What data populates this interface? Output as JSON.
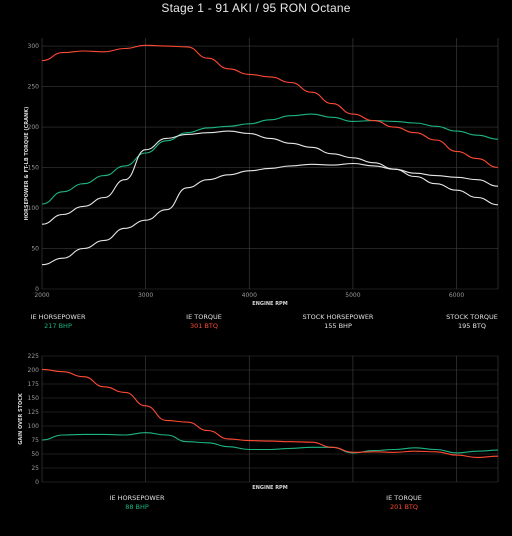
{
  "title": "Stage 1 - 91 AKI / 95 RON Octane",
  "colors": {
    "green": "#1db584",
    "red": "#ff4a33",
    "white": "#e6e6e6",
    "grid": "#3a3a3a",
    "background": "#000000"
  },
  "chart_data": [
    {
      "type": "line",
      "ylabel": "HORSEPOWER & FT-LB TORQUE (CRANK)",
      "xlabel": "ENGINE RPM",
      "xlim": [
        2000,
        6400
      ],
      "ylim": [
        0,
        310
      ],
      "xticks": [
        "2000",
        "3000",
        "4000",
        "5000",
        "6000"
      ],
      "yticks": [
        "0",
        "50",
        "100",
        "150",
        "200",
        "250",
        "300"
      ],
      "grid": true,
      "series": [
        {
          "name": "IE HORSEPOWER",
          "color": "green",
          "x": [
            2000,
            2200,
            2400,
            2600,
            2800,
            3000,
            3200,
            3400,
            3600,
            3800,
            4000,
            4200,
            4400,
            4600,
            4800,
            5000,
            5200,
            5400,
            5600,
            5800,
            6000,
            6200,
            6400
          ],
          "y": [
            105,
            120,
            130,
            140,
            152,
            168,
            183,
            193,
            199,
            201,
            204,
            209,
            214,
            216,
            212,
            207,
            208,
            207,
            205,
            201,
            195,
            190,
            185
          ]
        },
        {
          "name": "IE TORQUE",
          "color": "red",
          "x": [
            2000,
            2200,
            2400,
            2600,
            2800,
            3000,
            3200,
            3400,
            3600,
            3800,
            4000,
            4200,
            4400,
            4600,
            4800,
            5000,
            5200,
            5400,
            5600,
            5800,
            6000,
            6200,
            6400
          ],
          "y": [
            282,
            292,
            294,
            293,
            297,
            301,
            300,
            299,
            285,
            272,
            265,
            262,
            255,
            243,
            229,
            216,
            208,
            200,
            193,
            184,
            170,
            161,
            150
          ]
        },
        {
          "name": "STOCK HORSEPOWER",
          "color": "white",
          "x": [
            2000,
            2200,
            2400,
            2600,
            2800,
            3000,
            3200,
            3400,
            3600,
            3800,
            4000,
            4200,
            4400,
            4600,
            4800,
            5000,
            5200,
            5400,
            5600,
            5800,
            6000,
            6200,
            6400
          ],
          "y": [
            30,
            38,
            50,
            60,
            75,
            85,
            98,
            125,
            135,
            141,
            146,
            149,
            152,
            154,
            153,
            155,
            152,
            148,
            143,
            140,
            138,
            135,
            127
          ]
        },
        {
          "name": "STOCK TORQUE",
          "color": "white",
          "x": [
            2000,
            2200,
            2400,
            2600,
            2800,
            3000,
            3200,
            3400,
            3600,
            3800,
            4000,
            4200,
            4400,
            4600,
            4800,
            5000,
            5200,
            5400,
            5600,
            5800,
            6000,
            6200,
            6400
          ],
          "y": [
            80,
            92,
            102,
            113,
            135,
            172,
            186,
            191,
            193,
            195,
            192,
            186,
            180,
            175,
            167,
            162,
            156,
            148,
            139,
            130,
            122,
            113,
            104
          ]
        }
      ]
    },
    {
      "type": "line",
      "ylabel": "GAIN OVER STOCK",
      "xlabel": "ENGINE RPM",
      "xlim": [
        2000,
        6400
      ],
      "ylim": [
        0,
        225
      ],
      "yticks": [
        "0",
        "25",
        "50",
        "75",
        "100",
        "125",
        "150",
        "175",
        "200",
        "225"
      ],
      "grid": true,
      "series": [
        {
          "name": "IE HORSEPOWER",
          "color": "green",
          "x": [
            2000,
            2200,
            2400,
            2600,
            2800,
            3000,
            3200,
            3400,
            3600,
            3800,
            4000,
            4200,
            4400,
            4600,
            4800,
            5000,
            5200,
            5400,
            5600,
            5800,
            6000,
            6200,
            6400
          ],
          "y": [
            75,
            84,
            85,
            85,
            84,
            88,
            84,
            72,
            70,
            63,
            58,
            58,
            60,
            62,
            62,
            52,
            56,
            58,
            61,
            58,
            52,
            55,
            57
          ]
        },
        {
          "name": "IE TORQUE",
          "color": "red",
          "x": [
            2000,
            2200,
            2400,
            2600,
            2800,
            3000,
            3200,
            3400,
            3600,
            3800,
            4000,
            4200,
            4400,
            4600,
            4800,
            5000,
            5200,
            5400,
            5600,
            5800,
            6000,
            6200,
            6400
          ],
          "y": [
            201,
            197,
            188,
            170,
            160,
            136,
            110,
            107,
            92,
            77,
            74,
            73,
            72,
            71,
            62,
            53,
            54,
            53,
            55,
            54,
            48,
            44,
            46
          ]
        }
      ]
    }
  ],
  "legend_top": [
    {
      "name": "IE HORSEPOWER",
      "value": "217 BHP",
      "color": "green"
    },
    {
      "name": "IE TORQUE",
      "value": "301 BTQ",
      "color": "red"
    },
    {
      "name": "STOCK HORSEPOWER",
      "value": "155 BHP",
      "color": "white"
    },
    {
      "name": "STOCK TORQUE",
      "value": "195 BTQ",
      "color": "white"
    }
  ],
  "legend_bottom": [
    {
      "name": "IE HORSEPOWER",
      "value": "88 BHP",
      "color": "green"
    },
    {
      "name": "IE TORQUE",
      "value": "201 BTQ",
      "color": "red"
    }
  ]
}
